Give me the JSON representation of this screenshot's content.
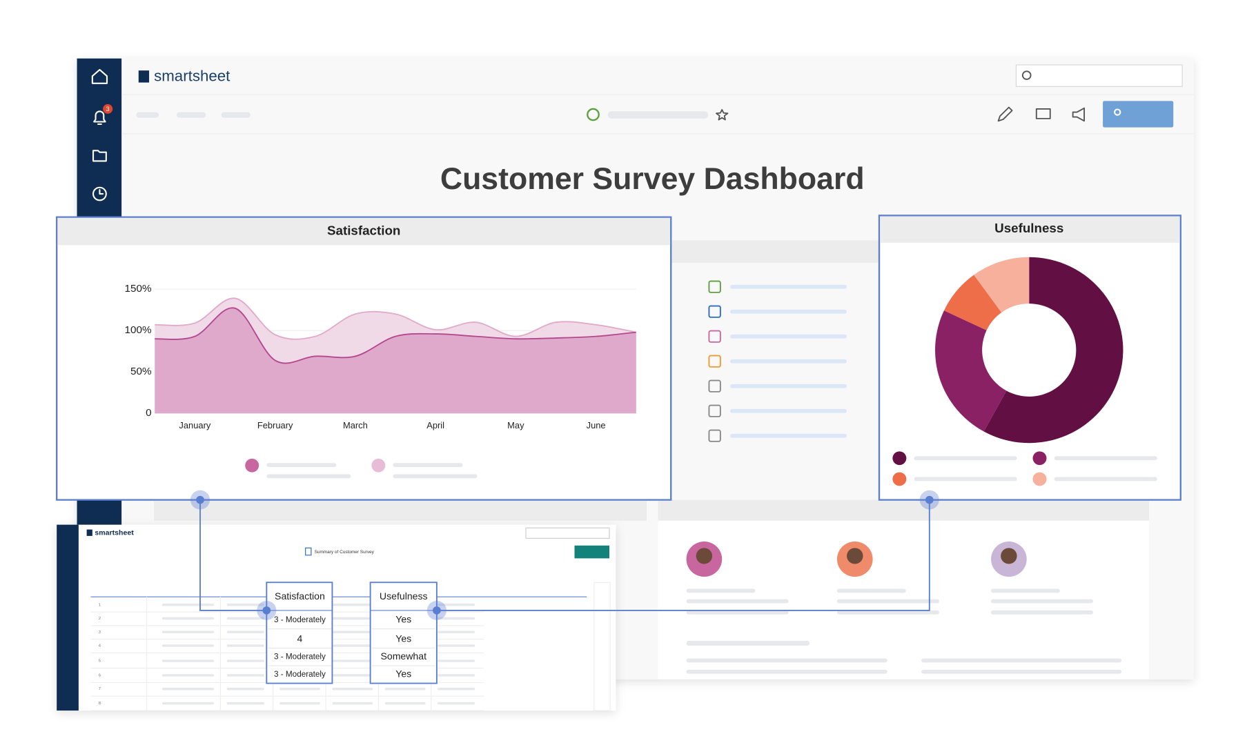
{
  "app": {
    "logo": "smartsheet",
    "notification_count": 3
  },
  "dashboard_title": "Customer Survey Dashboard",
  "chart_data": [
    {
      "type": "area",
      "title": "Satisfaction",
      "x": [
        0,
        0.5,
        1,
        1.5,
        2,
        2.5,
        3,
        3.5,
        4,
        4.5,
        5,
        5.5,
        6
      ],
      "xlim": [
        0,
        6
      ],
      "xticks": [
        {
          "value": 0.5,
          "label": "January"
        },
        {
          "value": 1.5,
          "label": "February"
        },
        {
          "value": 2.5,
          "label": "March"
        },
        {
          "value": 3.5,
          "label": "April"
        },
        {
          "value": 4.5,
          "label": "May"
        },
        {
          "value": 5.5,
          "label": "June"
        }
      ],
      "ylim": [
        0,
        150
      ],
      "yticks": [
        0,
        {
          "value": 50,
          "label": "50%"
        },
        {
          "value": 100,
          "label": "100%"
        },
        {
          "value": 150,
          "label": "150%"
        }
      ],
      "grid": true,
      "series": [
        {
          "color": "#b5478e",
          "values": [
            90,
            93,
            127,
            64,
            69,
            69,
            93,
            96,
            93,
            90,
            91,
            93,
            98
          ]
        },
        {
          "color": "#e1a9cb",
          "values": [
            107,
            109,
            139,
            95,
            93,
            120,
            120,
            101,
            110,
            93,
            110,
            107,
            98
          ]
        }
      ]
    },
    {
      "type": "donut",
      "title": "Usefulness",
      "values": [
        58,
        24,
        8,
        10
      ],
      "colors": [
        "#620f43",
        "#8b2165",
        "#ef6e4a",
        "#f6b09b"
      ]
    }
  ],
  "sheet": {
    "logo": "smartsheet",
    "name": "Summary of Customer Survey",
    "columns": [
      "Satisfaction",
      "Usefulness"
    ],
    "rows": [
      [
        "3 - Moderately",
        "Yes"
      ],
      [
        4,
        "Yes"
      ],
      [
        "3 - Moderately",
        "Somewhat"
      ],
      [
        "3 - Moderately",
        "Yes"
      ]
    ],
    "row_numbers": [
      1,
      2,
      3,
      4,
      5,
      6,
      7,
      8
    ]
  }
}
